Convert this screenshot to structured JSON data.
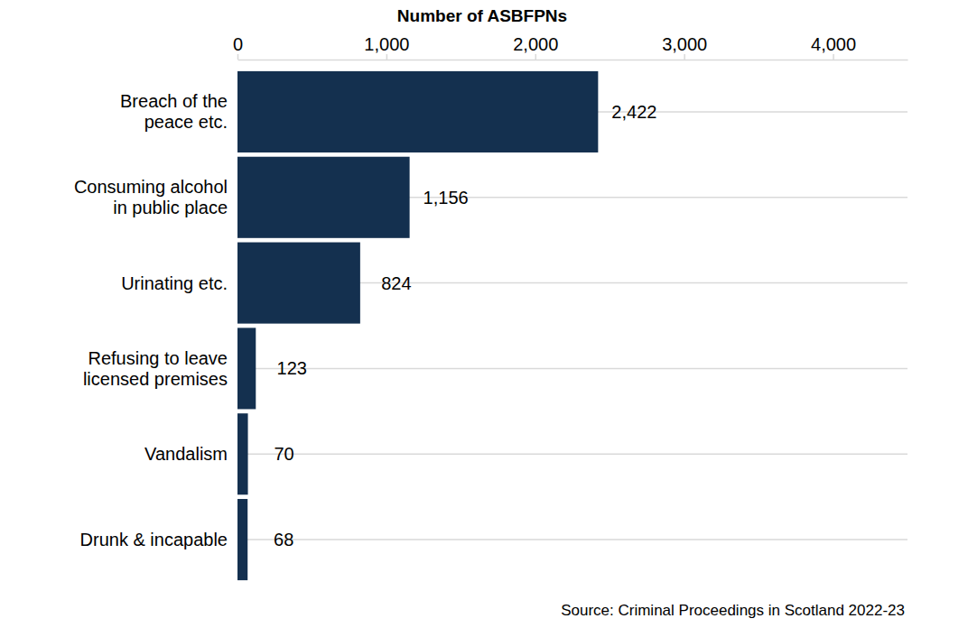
{
  "chart_data": {
    "type": "bar",
    "orientation": "horizontal",
    "x_label": "Number of ASBFPNs",
    "categories": [
      "Breach of the\npeace etc.",
      "Consuming alcohol\nin public place",
      "Urinating etc.",
      "Refusing to leave\nlicensed premises",
      "Vandalism",
      "Drunk & incapable"
    ],
    "values": [
      2422,
      1156,
      824,
      123,
      70,
      68
    ],
    "value_labels": [
      "2,422",
      "1,156",
      "824",
      "123",
      "70",
      "68"
    ],
    "color": "#14304f",
    "xlim": [
      0,
      4500
    ],
    "xticks": [
      0,
      {
        "value": 1000,
        "label": "1,000"
      },
      {
        "value": 2000,
        "label": "2,000"
      },
      {
        "value": 3000,
        "label": "3,000"
      },
      {
        "value": 4000,
        "label": "4,000"
      }
    ],
    "grid": true,
    "data_labels": true,
    "annotations": [
      "Source: Criminal Proceedings in Scotland 2022-23"
    ]
  }
}
